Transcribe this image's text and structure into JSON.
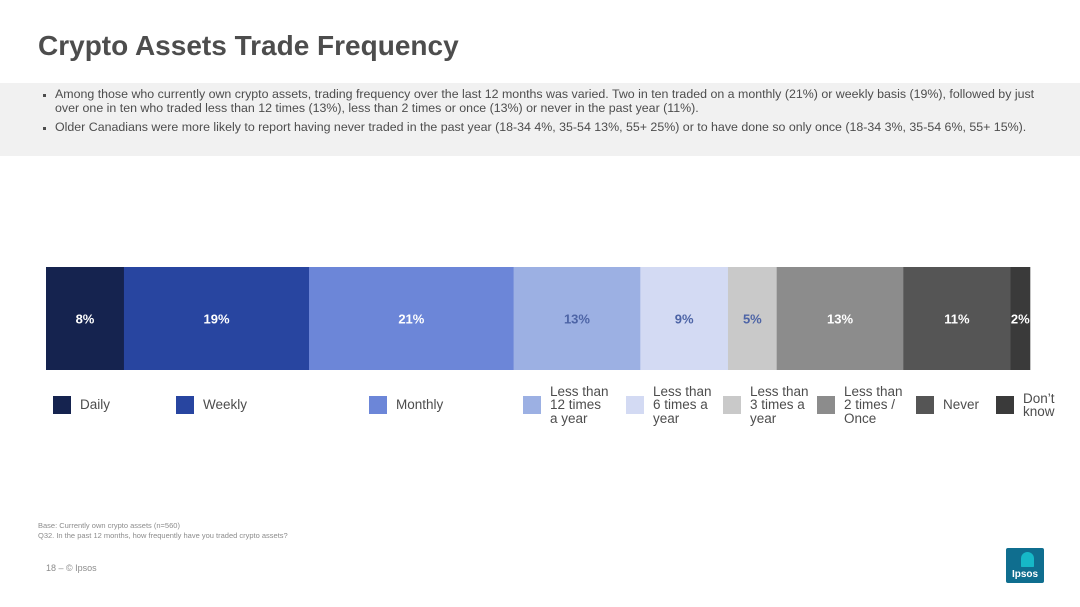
{
  "page": {
    "title": "Crypto Assets Trade Frequency",
    "bullets": [
      "Among those who currently own crypto assets, trading frequency over the last 12 months was varied.  Two in ten traded on a monthly (21%) or weekly basis (19%), followed by just over one in ten who traded less than 12 times (13%), less than 2 times or once (13%) or never in the past year (11%).",
      "Older Canadians were more likely to report having never traded in the past year (18-34 4%, 35-54 13%, 55+ 25%) or to have done so only once (18-34 3%, 35-54 6%, 55+ 15%)."
    ],
    "source_lines": [
      "Base: Currently own crypto assets (n=560)",
      "Q32. In the past 12 months, how frequently have you traded crypto assets?"
    ],
    "footer": "18 –   © Ipsos",
    "logo_text": "Ipsos"
  },
  "chart_data": {
    "type": "bar",
    "orientation": "horizontal-stacked-100",
    "categories": [
      "Daily",
      "Weekly",
      "Monthly",
      "Less than 12 times a year",
      "Less than 6 times a year",
      "Less than 3 times a year",
      "Less than 2 times / Once",
      "Never",
      "Don’t know"
    ],
    "legend_labels": [
      "Daily",
      "Weekly",
      "Monthly",
      "Less than\n12 times\na year",
      "Less than\n6 times a\nyear",
      "Less than\n3 times a\nyear",
      "Less than\n2 times /\nOnce",
      "Never",
      "Don’t\nknow"
    ],
    "values": [
      8,
      19,
      21,
      13,
      9,
      5,
      13,
      11,
      2
    ],
    "data_labels": [
      "8%",
      "19%",
      "21%",
      "13%",
      "9%",
      "5%",
      "13%",
      "11%",
      "2%"
    ],
    "colors": [
      "#15234f",
      "#2845a0",
      "#6c86d8",
      "#9cb0e3",
      "#d3daf3",
      "#c9c9c9",
      "#8c8c8c",
      "#555555",
      "#3a3a3a"
    ],
    "label_colors": [
      "#ffffff",
      "#ffffff",
      "#ffffff",
      "#4d64a6",
      "#4d64a6",
      "#4d64a6",
      "#ffffff",
      "#ffffff",
      "#ffffff"
    ],
    "legend_position": "bottom",
    "grid": false
  }
}
